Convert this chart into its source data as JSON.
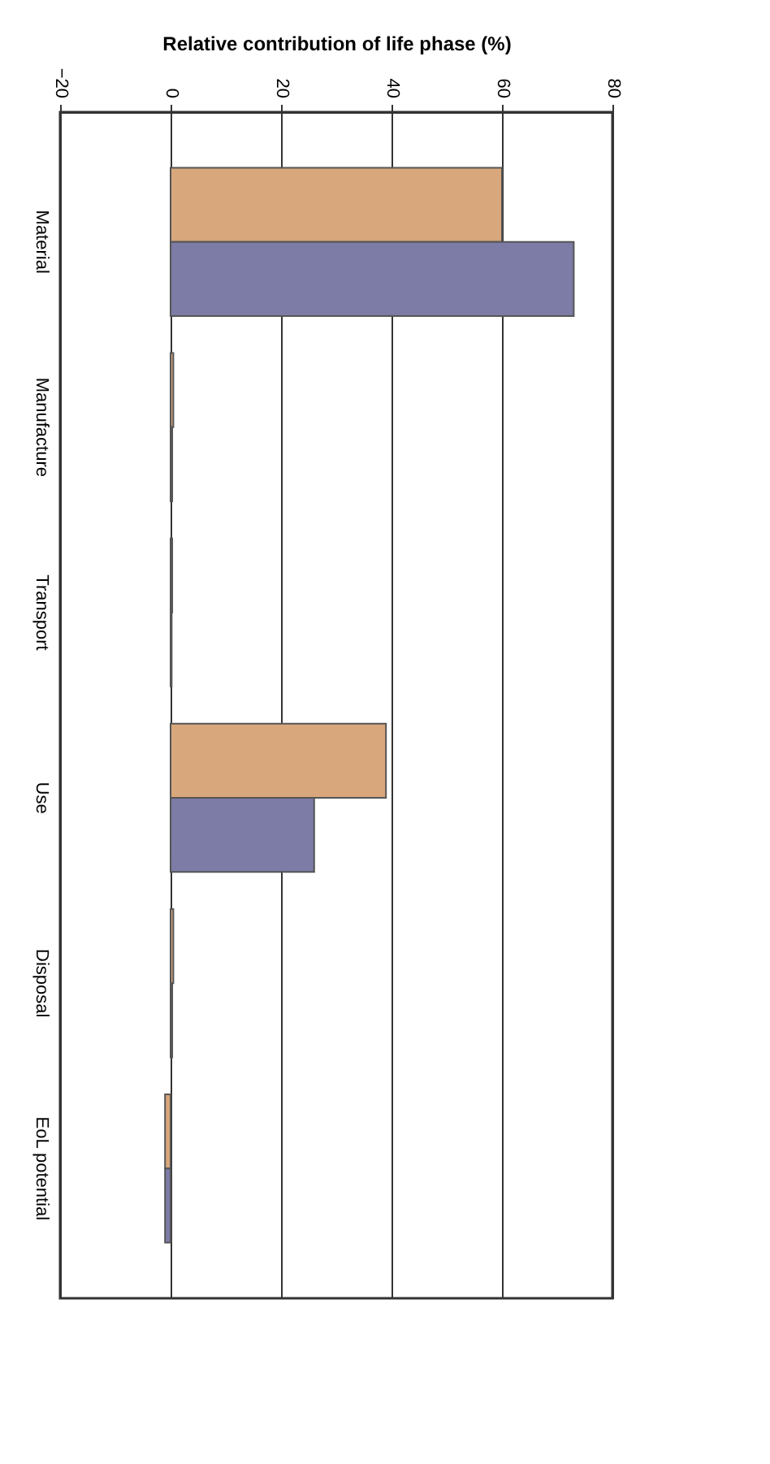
{
  "chart_data": {
    "type": "bar",
    "orientation": "horizontal",
    "xlabel": "Relative contribution of life phase (%)",
    "categories": [
      "Material",
      "Manufacture",
      "Transport",
      "Use",
      "Disposal",
      "EoL potential"
    ],
    "series": [
      {
        "color": "#d9a77c",
        "values": [
          60,
          0.5,
          0.3,
          39,
          0.5,
          -1
        ]
      },
      {
        "color": "#7c7ca6",
        "values": [
          73,
          0.3,
          0.2,
          26,
          0.3,
          -1
        ]
      }
    ],
    "xlim": [
      -20,
      80
    ],
    "xticks": [
      -20,
      0,
      20,
      40,
      60,
      80
    ],
    "grid": "x",
    "legend": false
  }
}
